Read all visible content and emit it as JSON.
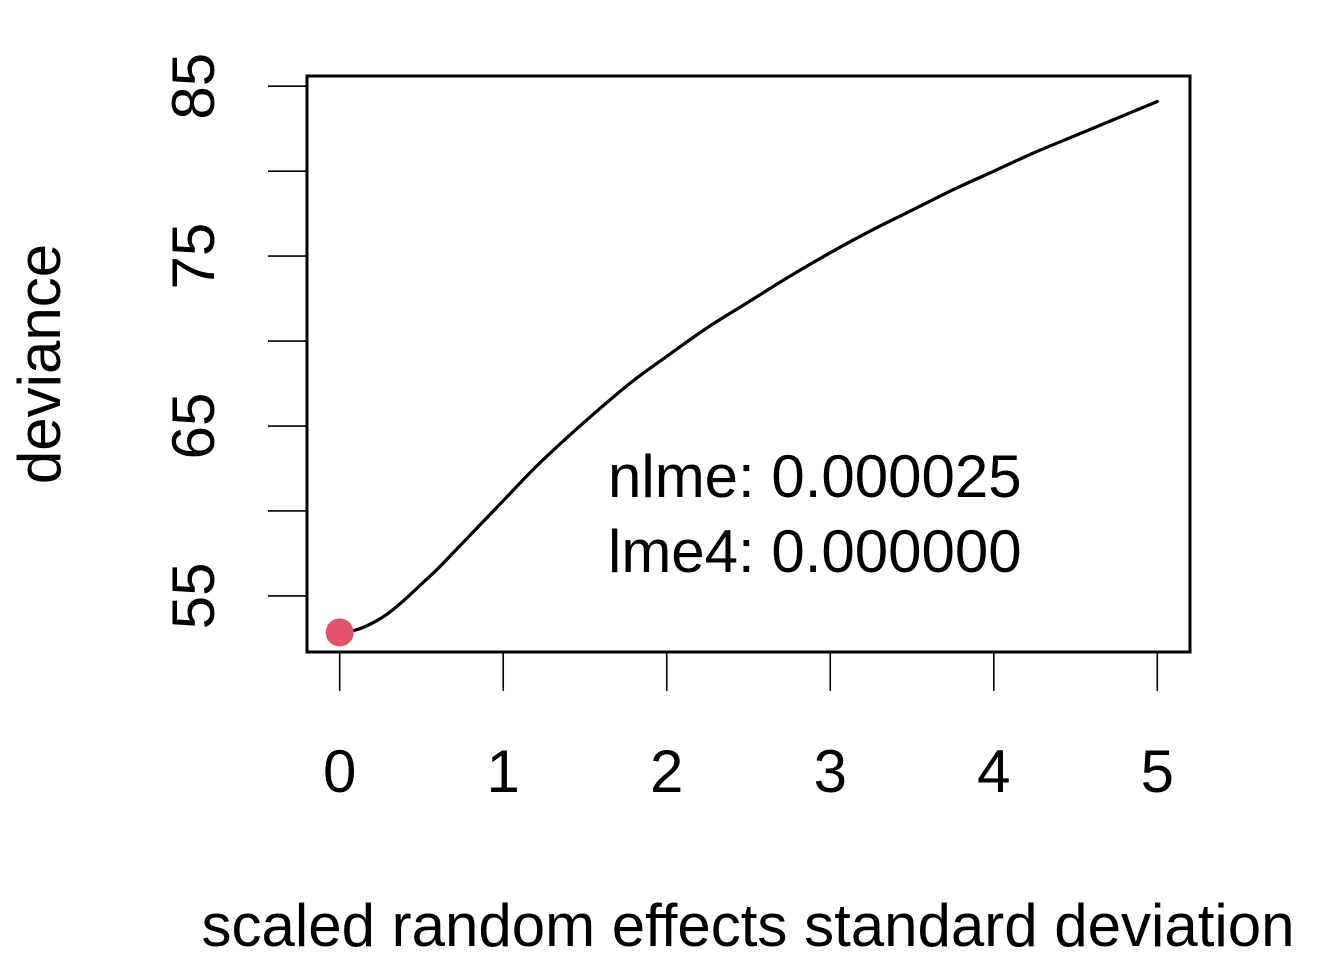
{
  "chart_data": {
    "type": "line",
    "title": "",
    "xlabel": "scaled random effects standard deviation",
    "ylabel": "deviance",
    "xlim": [
      -0.2,
      5.2
    ],
    "ylim": [
      51.7,
      85.6
    ],
    "x_ticks": [
      0,
      1,
      2,
      3,
      4,
      5
    ],
    "x_tick_labels": [
      "0",
      "1",
      "2",
      "3",
      "4",
      "5"
    ],
    "y_ticks": [
      55,
      60,
      65,
      70,
      75,
      80,
      85
    ],
    "y_tick_labels": [
      "55",
      "",
      "65",
      "",
      "75",
      "",
      "85"
    ],
    "grid": false,
    "series": [
      {
        "color": "#000000",
        "x": [
          0,
          0.1,
          0.2,
          0.3,
          0.4,
          0.5,
          0.6,
          0.7,
          0.8,
          0.9,
          1.0,
          1.2,
          1.4,
          1.6,
          1.8,
          2.0,
          2.25,
          2.5,
          2.75,
          3.0,
          3.25,
          3.5,
          3.75,
          4.0,
          4.25,
          4.5,
          4.75,
          5.0
        ],
        "y": [
          52.85,
          53.0,
          53.4,
          54.0,
          54.8,
          55.7,
          56.6,
          57.6,
          58.6,
          59.6,
          60.6,
          62.6,
          64.4,
          66.1,
          67.7,
          69.1,
          70.8,
          72.3,
          73.8,
          75.2,
          76.5,
          77.7,
          78.9,
          80.0,
          81.1,
          82.1,
          83.1,
          84.1
        ]
      }
    ],
    "highlight_point": {
      "x": 0,
      "y": 52.85,
      "color": "#DF536B"
    },
    "annotations": [
      "nlme: 0.000025",
      "lme4: 0.000000"
    ]
  }
}
